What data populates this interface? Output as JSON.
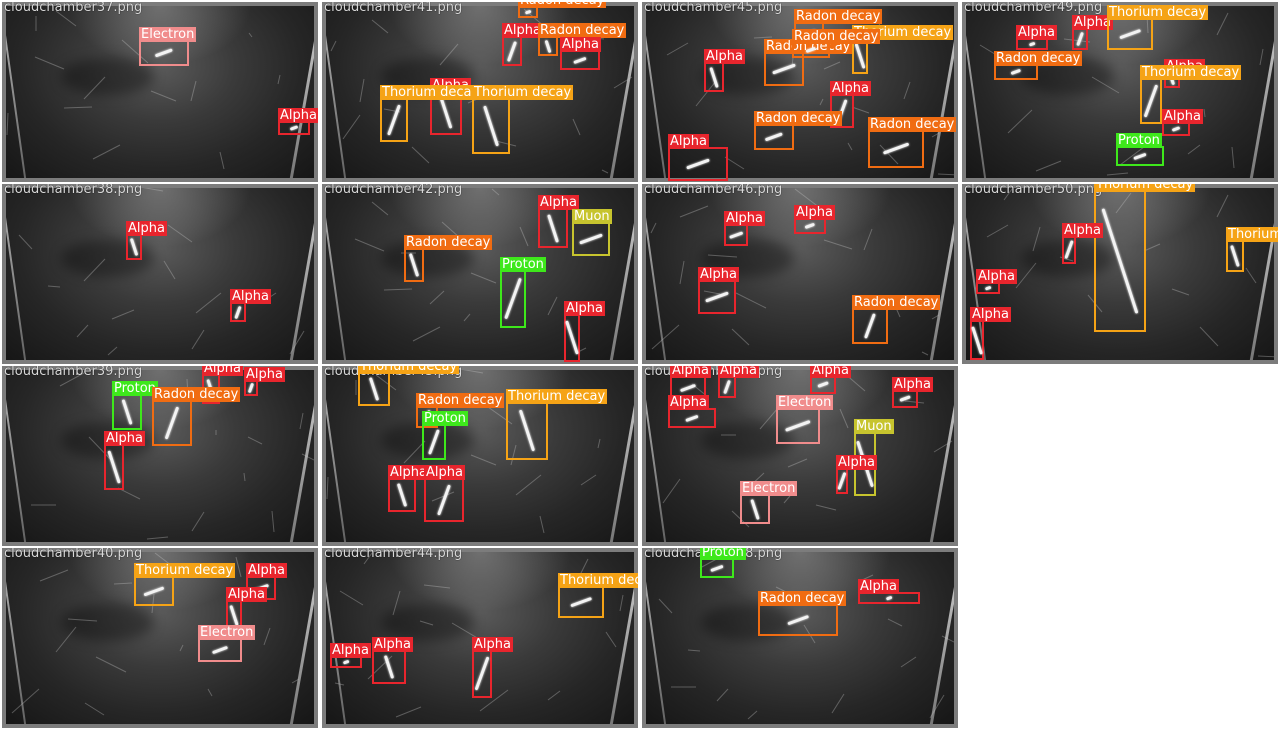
{
  "label_colors": {
    "Alpha": "#e8252d",
    "Electron": "#f08c8c",
    "Radon decay": "#f06c12",
    "Thorium decay": "#f5a316",
    "Proton": "#3ee81b",
    "Muon": "#c7c42e"
  },
  "tiles": [
    {
      "filename": "cloudchamber37.png",
      "detections": [
        {
          "label": "Electron"
        },
        {
          "label": "Alpha"
        }
      ]
    },
    {
      "filename": "cloudchamber41.png",
      "detections": [
        {
          "label": "Radon decay"
        },
        {
          "label": "Alpha"
        },
        {
          "label": "Radon decay"
        },
        {
          "label": "Alpha"
        },
        {
          "label": "Alpha"
        },
        {
          "label": "Thorium decay"
        },
        {
          "label": "Thorium decay"
        }
      ]
    },
    {
      "filename": "cloudchamber45.png",
      "detections": [
        {
          "label": "Alpha"
        },
        {
          "label": "Radon decay"
        },
        {
          "label": "Thorium decay"
        },
        {
          "label": "Alpha"
        },
        {
          "label": "Radon decay"
        },
        {
          "label": "Alpha"
        },
        {
          "label": "Radon decay"
        },
        {
          "label": "Radon decay"
        },
        {
          "label": "Radon decay"
        }
      ]
    },
    {
      "filename": "cloudchamber49.png",
      "detections": [
        {
          "label": "Alpha"
        },
        {
          "label": "Alpha"
        },
        {
          "label": "Thorium decay"
        },
        {
          "label": "Radon decay"
        },
        {
          "label": "Alpha"
        },
        {
          "label": "Thorium decay"
        },
        {
          "label": "Alpha"
        },
        {
          "label": "Proton"
        }
      ]
    },
    {
      "filename": "cloudchamber38.png",
      "detections": [
        {
          "label": "Alpha"
        },
        {
          "label": "Alpha"
        }
      ]
    },
    {
      "filename": "cloudchamber42.png",
      "detections": [
        {
          "label": "Alpha"
        },
        {
          "label": "Muon"
        },
        {
          "label": "Radon decay"
        },
        {
          "label": "Proton"
        },
        {
          "label": "Alpha"
        }
      ]
    },
    {
      "filename": "cloudchamber46.png",
      "detections": [
        {
          "label": "Alpha"
        },
        {
          "label": "Alpha"
        },
        {
          "label": "Alpha"
        },
        {
          "label": "Radon decay"
        }
      ]
    },
    {
      "filename": "cloudchamber50.png",
      "detections": [
        {
          "label": "Thorium decay"
        },
        {
          "label": "Alpha"
        },
        {
          "label": "Thorium decay"
        },
        {
          "label": "Alpha"
        },
        {
          "label": "Alpha"
        }
      ]
    },
    {
      "filename": "cloudchamber39.png",
      "detections": [
        {
          "label": "Alpha"
        },
        {
          "label": "Alpha"
        },
        {
          "label": "Proton"
        },
        {
          "label": "Radon decay"
        },
        {
          "label": "Alpha"
        }
      ]
    },
    {
      "filename": "cloudchamber43.png",
      "detections": [
        {
          "label": "Thorium decay"
        },
        {
          "label": "Radon decay"
        },
        {
          "label": "Thorium decay"
        },
        {
          "label": "Proton"
        },
        {
          "label": "Alpha"
        },
        {
          "label": "Alpha"
        }
      ]
    },
    {
      "filename": "cloudchamber47.png",
      "detections": [
        {
          "label": "Alpha"
        },
        {
          "label": "Alpha"
        },
        {
          "label": "Alpha"
        },
        {
          "label": "Alpha"
        },
        {
          "label": "Alpha"
        },
        {
          "label": "Electron"
        },
        {
          "label": "Muon"
        },
        {
          "label": "Alpha"
        },
        {
          "label": "Electron"
        }
      ]
    },
    {
      "filename": "cloudchamber40.png",
      "detections": [
        {
          "label": "Thorium decay"
        },
        {
          "label": "Alpha"
        },
        {
          "label": "Alpha"
        },
        {
          "label": "Electron"
        }
      ]
    },
    {
      "filename": "cloudchamber44.png",
      "detections": [
        {
          "label": "Thorium decay"
        },
        {
          "label": "Alpha"
        },
        {
          "label": "Alpha"
        },
        {
          "label": "Alpha"
        }
      ]
    },
    {
      "filename": "cloudchamber48.png",
      "detections": [
        {
          "label": "Proton"
        },
        {
          "label": "Alpha"
        },
        {
          "label": "Radon decay"
        }
      ]
    }
  ]
}
